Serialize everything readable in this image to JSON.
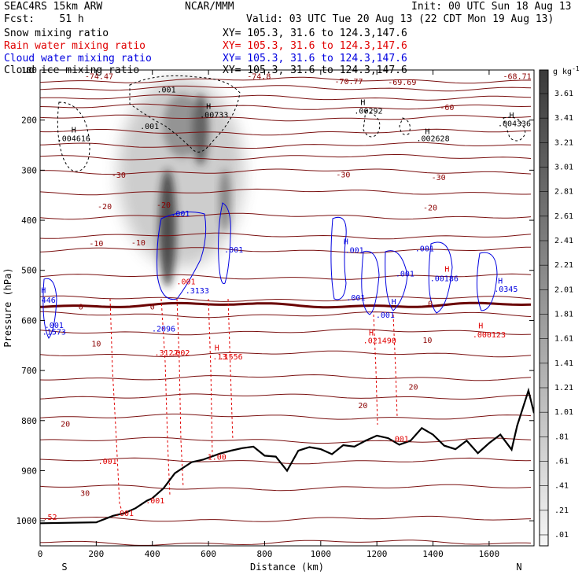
{
  "header": {
    "model": "SEAC4RS 15km ARW",
    "center": "NCAR/MMM",
    "init": "Init: 00 UTC Sun 18 Aug 13",
    "fcst": "Fcst:    51 h",
    "valid": "Valid: 03 UTC Tue 20 Aug 13 (22 CDT Mon 19 Aug 13)",
    "xsection": "XY= 105.3, 31.6 to 124.3,147.6"
  },
  "fields": [
    {
      "label": "Snow mixing ratio",
      "color": "#000000"
    },
    {
      "label": "Rain water mixing ratio",
      "color": "#e00000"
    },
    {
      "label": "Cloud water mixing ratio",
      "color": "#0000e0"
    },
    {
      "label": "Cloud ice mixing ratio",
      "color": "#000000"
    }
  ],
  "chart_data": {
    "type": "cross-section",
    "xlabel": "Distance (km)",
    "ylabel": "Pressure (hPa)",
    "xlim": [
      0,
      1760
    ],
    "ylim": [
      1050,
      100
    ],
    "x_ticks": [
      "0",
      "200",
      "400",
      "600",
      "800",
      "1000",
      "1200",
      "1400",
      "1600"
    ],
    "y_ticks": [
      "100",
      "200",
      "300",
      "400",
      "500",
      "600",
      "700",
      "800",
      "900",
      "1000"
    ],
    "x_end_labels": {
      "left": "S",
      "right": "N"
    },
    "colorbar": {
      "unit": "g kg",
      "unit_exp": "-1",
      "labels": [
        "3.61",
        "3.41",
        "3.21",
        "3.01",
        "2.81",
        "2.61",
        "2.41",
        "2.21",
        "2.01",
        "1.81",
        "1.61",
        "1.41",
        "1.21",
        "1.01",
        ".81",
        ".61",
        ".41",
        ".21",
        ".01"
      ]
    },
    "temperature_labels": [
      {
        "text": "-74.47",
        "x": 210,
        "p": 118
      },
      {
        "text": "-74.8",
        "x": 780,
        "p": 118
      },
      {
        "text": "-70.77",
        "x": 1100,
        "p": 128
      },
      {
        "text": "-69.69",
        "x": 1290,
        "p": 130
      },
      {
        "text": "-68.71",
        "x": 1700,
        "p": 118
      },
      {
        "text": "-60",
        "x": 1450,
        "p": 180
      },
      {
        "text": "-30",
        "x": 280,
        "p": 315
      },
      {
        "text": "-30",
        "x": 1080,
        "p": 314
      },
      {
        "text": "-30",
        "x": 1420,
        "p": 320
      },
      {
        "text": "-20",
        "x": 230,
        "p": 378
      },
      {
        "text": "-20",
        "x": 440,
        "p": 375
      },
      {
        "text": "-20",
        "x": 1390,
        "p": 380
      },
      {
        "text": "-10",
        "x": 200,
        "p": 452
      },
      {
        "text": "-10",
        "x": 350,
        "p": 450
      },
      {
        "text": "0",
        "x": 145,
        "p": 578
      },
      {
        "text": "0",
        "x": 400,
        "p": 578
      },
      {
        "text": "10",
        "x": 200,
        "p": 652
      },
      {
        "text": "10",
        "x": 1380,
        "p": 645
      },
      {
        "text": "20",
        "x": 1330,
        "p": 738
      },
      {
        "text": "20",
        "x": 1150,
        "p": 775
      },
      {
        "text": "20",
        "x": 90,
        "p": 812
      },
      {
        "text": "30",
        "x": 160,
        "p": 950
      },
      {
        "text": "0",
        "x": 1390,
        "p": 572
      }
    ],
    "snow_labels": [
      {
        "text": ".001",
        "x": 450,
        "p": 145
      },
      {
        "text": "H",
        "x": 600,
        "p": 178
      },
      {
        "text": ".00733",
        "x": 620,
        "p": 195
      },
      {
        "text": ".001",
        "x": 390,
        "p": 218
      },
      {
        "text": "H",
        "x": 120,
        "p": 225
      },
      {
        "text": ".004616",
        "x": 120,
        "p": 242
      },
      {
        "text": "H",
        "x": 1150,
        "p": 170
      },
      {
        "text": ".00292",
        "x": 1170,
        "p": 187
      },
      {
        "text": "H",
        "x": 1380,
        "p": 228
      },
      {
        "text": ".002628",
        "x": 1400,
        "p": 242
      },
      {
        "text": "H",
        "x": 1680,
        "p": 196
      },
      {
        "text": ".004336",
        "x": 1690,
        "p": 212
      }
    ],
    "cloud_water_labels": [
      {
        "text": ".001",
        "x": 500,
        "p": 392
      },
      {
        "text": ".001",
        "x": 690,
        "p": 464
      },
      {
        "text": ".001",
        "x": 1120,
        "p": 465
      },
      {
        "text": ".001",
        "x": 1370,
        "p": 462
      },
      {
        "text": "H",
        "x": 1090,
        "p": 448
      },
      {
        "text": "H",
        "x": 12,
        "p": 545
      },
      {
        "text": "446",
        "x": 30,
        "p": 565
      },
      {
        "text": ".001",
        "x": 50,
        "p": 615
      },
      {
        "text": ".1573",
        "x": 50,
        "p": 628
      },
      {
        "text": ".2096",
        "x": 440,
        "p": 622
      },
      {
        "text": ".3133",
        "x": 560,
        "p": 546
      },
      {
        "text": ".001",
        "x": 1300,
        "p": 512
      },
      {
        "text": ".001",
        "x": 1125,
        "p": 560
      },
      {
        "text": "H",
        "x": 1260,
        "p": 568
      },
      {
        "text": ".001",
        "x": 1230,
        "p": 595
      },
      {
        "text": "H",
        "x": 1640,
        "p": 526
      },
      {
        "text": ".0345",
        "x": 1660,
        "p": 543
      },
      {
        "text": ".00186",
        "x": 1440,
        "p": 522
      }
    ],
    "rain_labels": [
      {
        "text": "H",
        "x": 1450,
        "p": 503
      },
      {
        "text": "H",
        "x": 1570,
        "p": 616
      },
      {
        "text": ".000123",
        "x": 1600,
        "p": 634
      },
      {
        "text": "H",
        "x": 1180,
        "p": 630
      },
      {
        "text": ".021490",
        "x": 1210,
        "p": 646
      },
      {
        "text": ".3122",
        "x": 450,
        "p": 670
      },
      {
        "text": ".002",
        "x": 500,
        "p": 670
      },
      {
        "text": "H",
        "x": 630,
        "p": 660
      },
      {
        "text": ".13",
        "x": 640,
        "p": 678
      },
      {
        "text": ".1556",
        "x": 680,
        "p": 678
      },
      {
        "text": ".001",
        "x": 1280,
        "p": 842
      },
      {
        "text": ".001",
        "x": 520,
        "p": 528
      },
      {
        "text": ".001",
        "x": 240,
        "p": 887
      },
      {
        "text": ".001",
        "x": 300,
        "p": 990
      },
      {
        "text": ".001",
        "x": 410,
        "p": 965
      },
      {
        "text": "1.00",
        "x": 630,
        "p": 878
      },
      {
        "text": ".52",
        "x": 35,
        "p": 998
      }
    ]
  }
}
